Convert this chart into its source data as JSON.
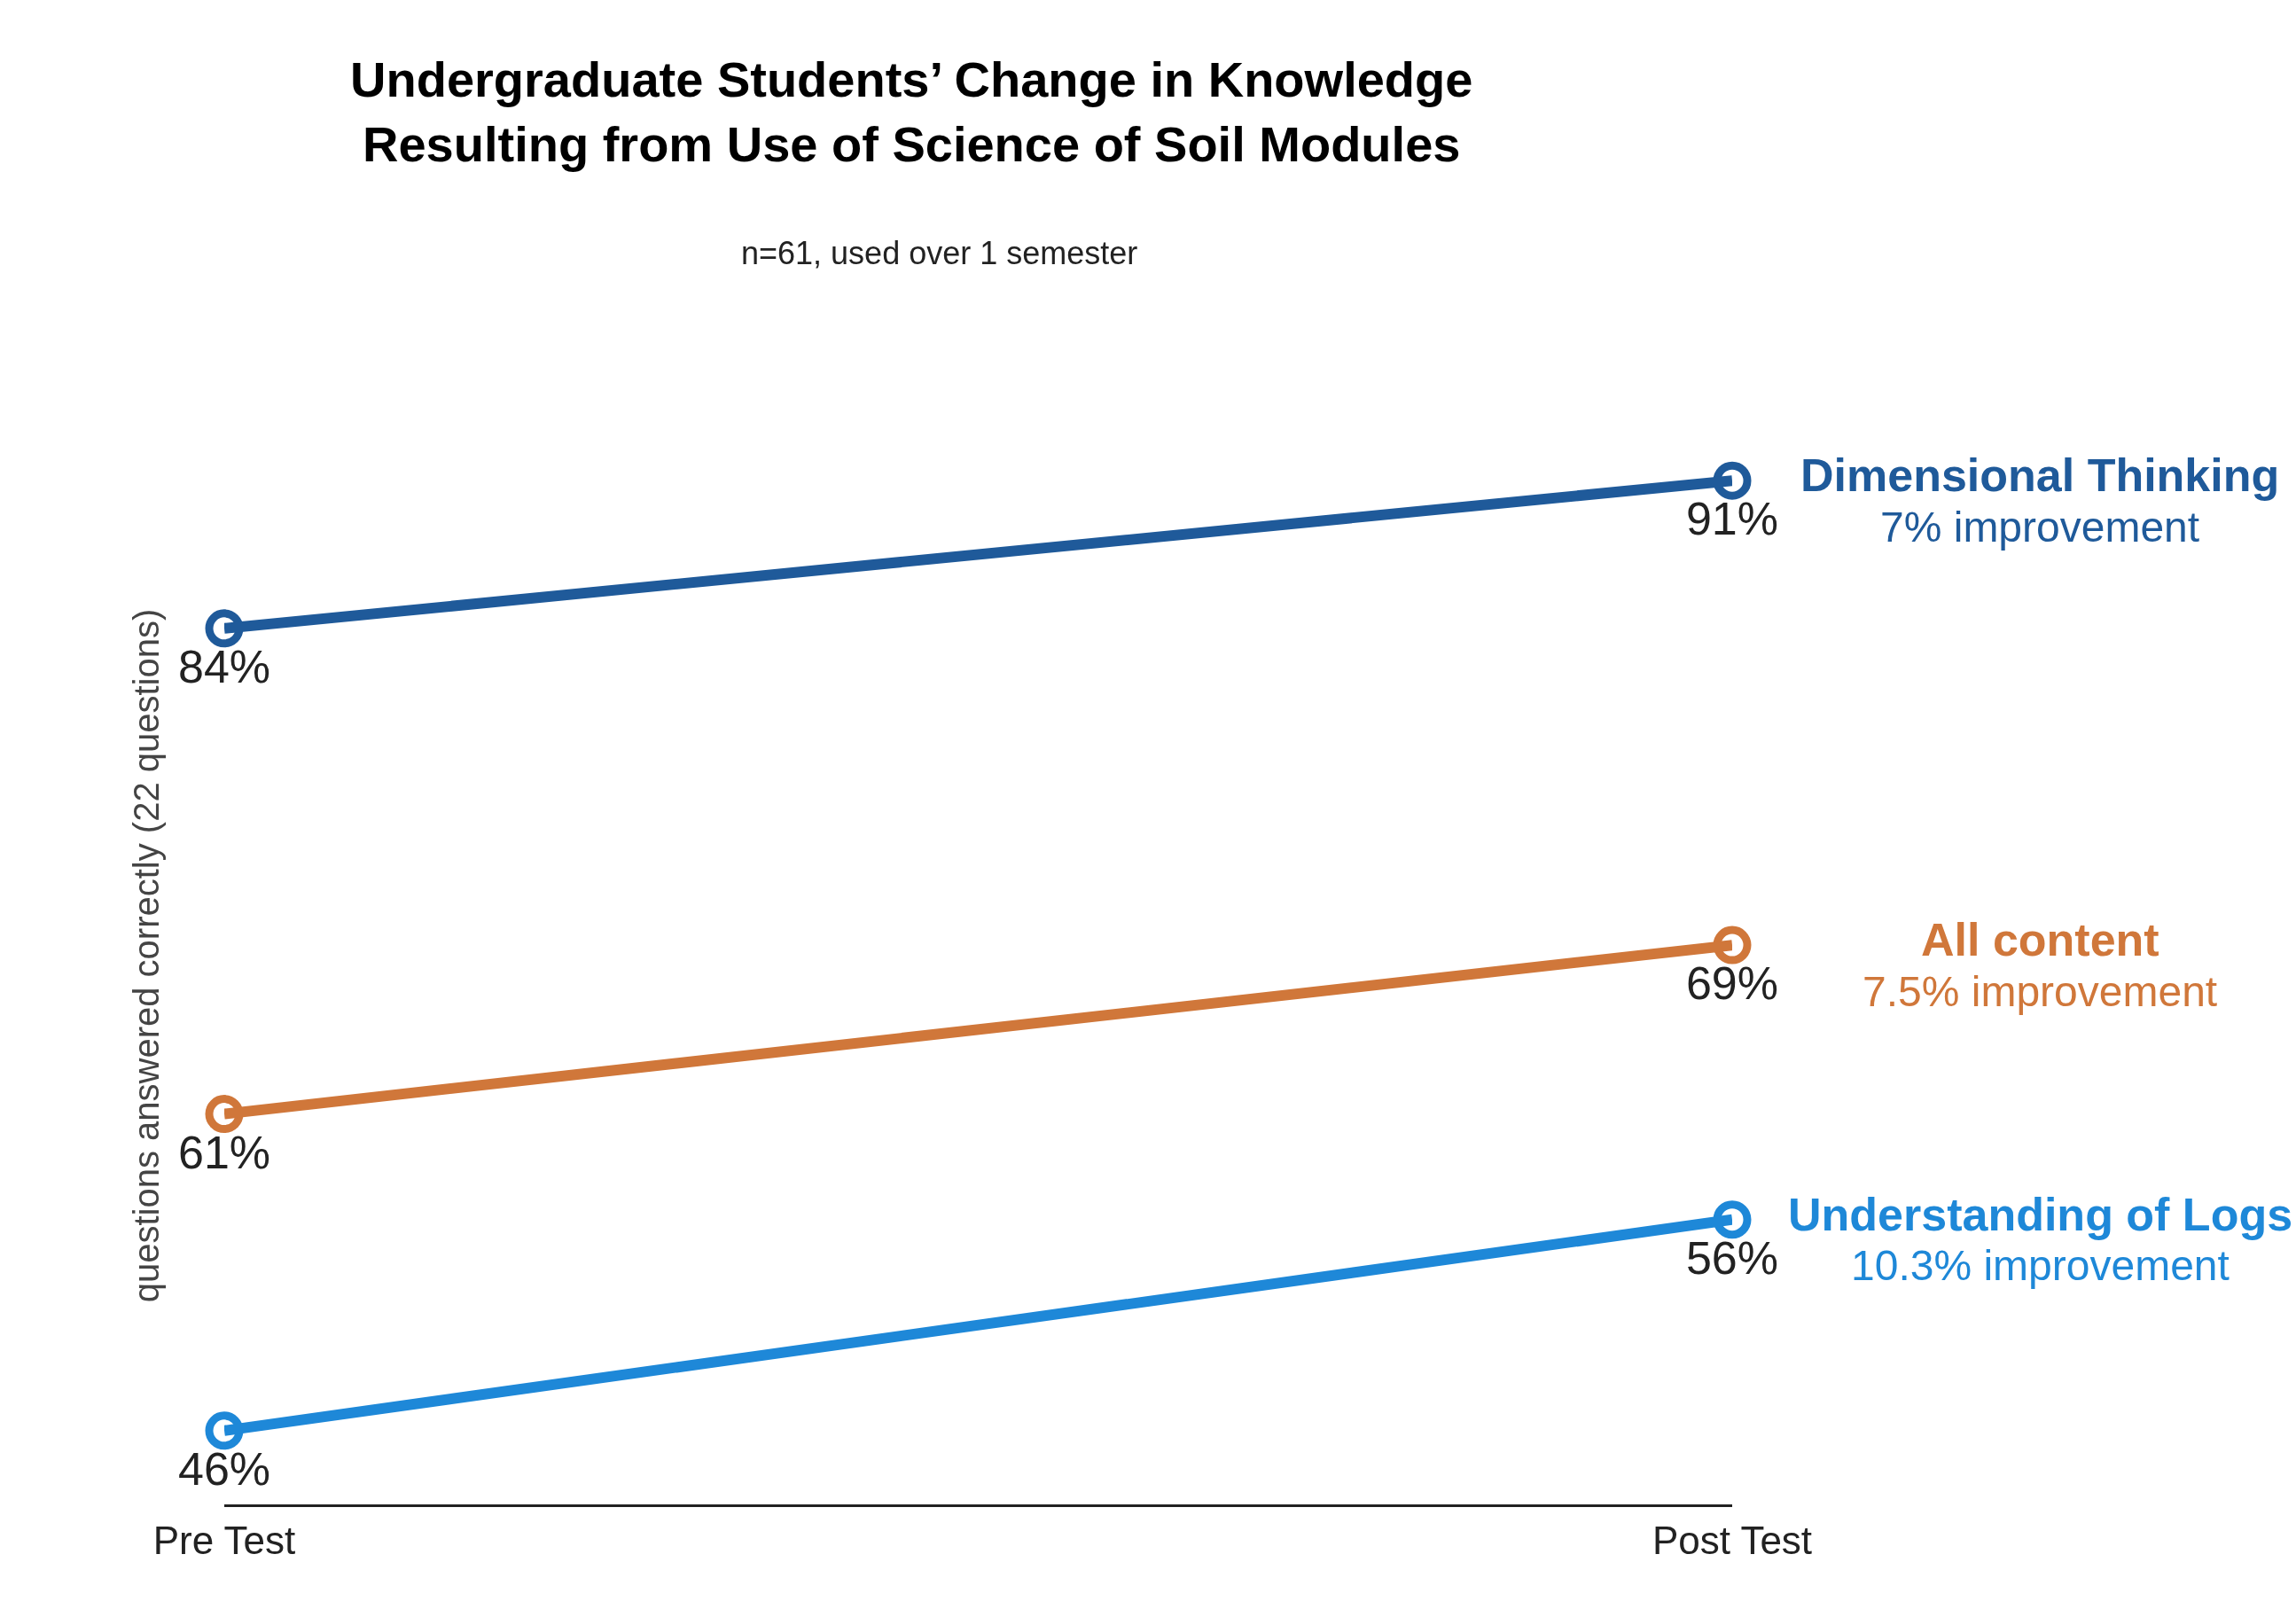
{
  "chart_data": {
    "type": "line",
    "title": "Undergraduate Students’ Change in Knowledge\nResulting from Use of Science of Soil Modules",
    "subtitle": "n=61, used over 1 semester",
    "ylabel": "questions answered correctly (22 questions)",
    "categories": [
      "Pre Test",
      "Post Test"
    ],
    "series": [
      {
        "name": "Dimensional Thinking",
        "color": "#1f5a9a",
        "values": [
          84,
          91
        ],
        "value_labels": [
          "84%",
          "91%"
        ]
      },
      {
        "name": "All content",
        "color": "#d0773a",
        "values": [
          61,
          69
        ],
        "value_labels": [
          "61%",
          "69%"
        ]
      },
      {
        "name": "Understanding of Logs",
        "color": "#1e88d8",
        "values": [
          46,
          56
        ],
        "value_labels": [
          "46%",
          "56%"
        ]
      }
    ],
    "annotations": [
      "7% improvement",
      "7.5% improvement",
      "10.3% improvement"
    ],
    "marker": "circle",
    "line_style": "solid",
    "tick_labels": "x",
    "legend": "right"
  }
}
